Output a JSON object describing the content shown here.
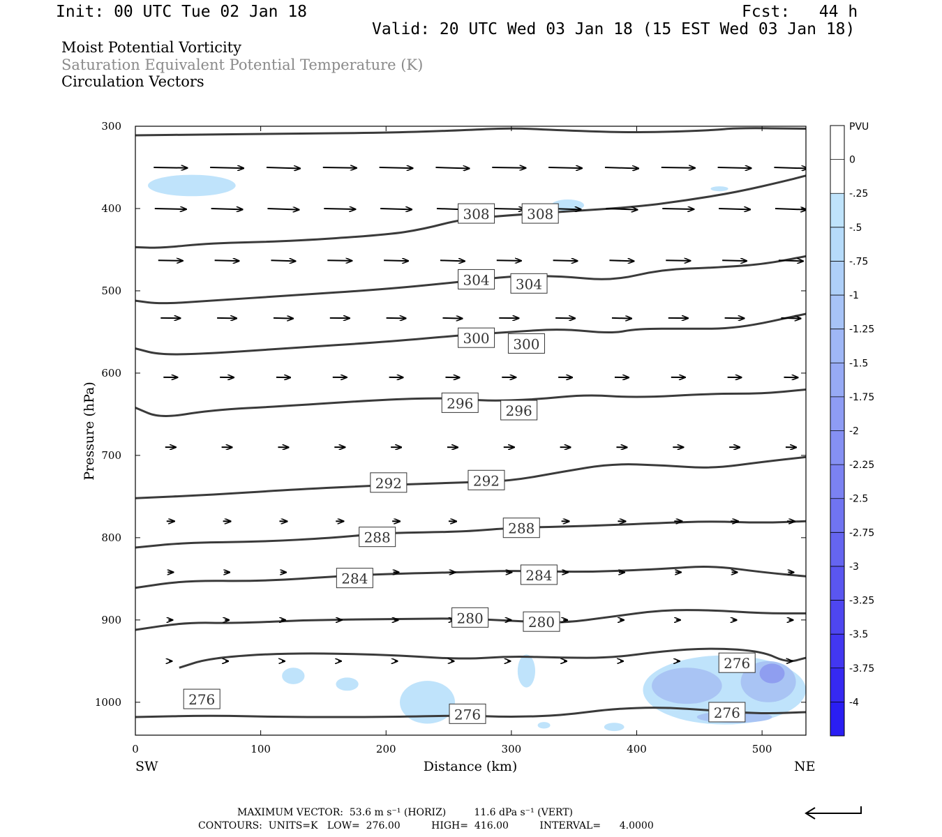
{
  "header": {
    "init": "Init: 00 UTC Tue 02 Jan 18",
    "fcst": "Fcst:   44 h",
    "valid": "Valid: 20 UTC Wed 03 Jan 18 (15 EST Wed 03 Jan 18)"
  },
  "titles": {
    "field1": "Moist Potential Vorticity",
    "field2": "Saturation Equivalent Potential Temperature (K)",
    "field3": "Circulation Vectors"
  },
  "colors": {
    "field2_text": "#8a8a8a",
    "contour": "#3a3a3a",
    "pv_light": "#bfe3fb",
    "pv_mid": "#a9c4f4",
    "pv_dark": "#8f9ef0"
  },
  "footer": {
    "max_vector": "MAXIMUM VECTOR:  53.6 m s⁻¹ (HORIZ)         11.6 dPa s⁻¹ (VERT)",
    "contours": "CONTOURS:  UNITS=K   LOW=  276.00          HIGH=  416.00          INTERVAL=      4.0000"
  },
  "chart_data": {
    "type": "cross-section",
    "xlabel": "Distance (km)",
    "ylabel": "Pressure (hPa)",
    "xlim": [
      0,
      535
    ],
    "ylim": [
      300,
      1040
    ],
    "x_ticks": [
      0,
      100,
      200,
      300,
      400,
      500
    ],
    "y_ticks": [
      300,
      400,
      500,
      600,
      700,
      800,
      900,
      1000
    ],
    "x_end_labels": [
      "SW",
      "NE"
    ],
    "colorbar": {
      "title": "PVU",
      "labels": [
        "0",
        "-.25",
        "-.5",
        "-.75",
        "-1",
        "-1.25",
        "-1.5",
        "-1.75",
        "-2",
        "-2.25",
        "-2.5",
        "-2.75",
        "-3",
        "-3.25",
        "-3.5",
        "-3.75",
        "-4"
      ],
      "colors": [
        "#ffffff",
        "#ffffff",
        "#bfe3fb",
        "#b6dbfa",
        "#aecff8",
        "#a7c3f7",
        "#9fb7f6",
        "#97aaf5",
        "#8e9cf4",
        "#8590f3",
        "#7b82f2",
        "#7074f1",
        "#6565f0",
        "#5a56f0",
        "#4e46f0",
        "#4237f1",
        "#3629f2",
        "#2a1ef3"
      ]
    },
    "contours": [
      {
        "level": 276,
        "points": [
          [
            0,
            1018
          ],
          [
            60,
            1016
          ],
          [
            120,
            1018
          ],
          [
            200,
            1018
          ],
          [
            260,
            1016
          ],
          [
            300,
            1018
          ],
          [
            340,
            1016
          ],
          [
            380,
            1008
          ],
          [
            420,
            1006
          ],
          [
            460,
            1010
          ],
          [
            500,
            1014
          ],
          [
            535,
            1012
          ]
        ]
      },
      {
        "level": 276,
        "points": [
          [
            35,
            958
          ],
          [
            60,
            946
          ],
          [
            120,
            940
          ],
          [
            200,
            942
          ],
          [
            260,
            948
          ],
          [
            300,
            944
          ],
          [
            340,
            946
          ],
          [
            380,
            946
          ],
          [
            420,
            938
          ],
          [
            460,
            934
          ],
          [
            500,
            938
          ],
          [
            520,
            952
          ],
          [
            535,
            946
          ]
        ]
      },
      {
        "level": 280,
        "points": [
          [
            0,
            912
          ],
          [
            40,
            903
          ],
          [
            80,
            904
          ],
          [
            140,
            900
          ],
          [
            200,
            899
          ],
          [
            260,
            898
          ],
          [
            300,
            901
          ],
          [
            340,
            904
          ],
          [
            380,
            896
          ],
          [
            420,
            888
          ],
          [
            460,
            888
          ],
          [
            500,
            892
          ],
          [
            535,
            892
          ]
        ]
      },
      {
        "level": 284,
        "points": [
          [
            0,
            861
          ],
          [
            40,
            852
          ],
          [
            100,
            853
          ],
          [
            160,
            847
          ],
          [
            200,
            844
          ],
          [
            260,
            842
          ],
          [
            300,
            840
          ],
          [
            360,
            842
          ],
          [
            420,
            838
          ],
          [
            460,
            834
          ],
          [
            500,
            842
          ],
          [
            535,
            847
          ]
        ]
      },
      {
        "level": 288,
        "points": [
          [
            0,
            812
          ],
          [
            40,
            806
          ],
          [
            100,
            805
          ],
          [
            160,
            800
          ],
          [
            200,
            794
          ],
          [
            260,
            793
          ],
          [
            300,
            788
          ],
          [
            360,
            786
          ],
          [
            420,
            782
          ],
          [
            460,
            780
          ],
          [
            500,
            782
          ],
          [
            535,
            780
          ]
        ]
      },
      {
        "level": 292,
        "points": [
          [
            0,
            752
          ],
          [
            60,
            748
          ],
          [
            120,
            742
          ],
          [
            200,
            736
          ],
          [
            260,
            733
          ],
          [
            300,
            731
          ],
          [
            340,
            720
          ],
          [
            380,
            710
          ],
          [
            420,
            712
          ],
          [
            460,
            716
          ],
          [
            500,
            708
          ],
          [
            535,
            702
          ]
        ]
      },
      {
        "level": 296,
        "points": [
          [
            0,
            642
          ],
          [
            20,
            655
          ],
          [
            60,
            645
          ],
          [
            120,
            640
          ],
          [
            200,
            632
          ],
          [
            250,
            630
          ],
          [
            280,
            634
          ],
          [
            320,
            632
          ],
          [
            360,
            626
          ],
          [
            400,
            630
          ],
          [
            460,
            625
          ],
          [
            500,
            625
          ],
          [
            535,
            620
          ]
        ]
      },
      {
        "level": 300,
        "points": [
          [
            0,
            570
          ],
          [
            20,
            578
          ],
          [
            60,
            576
          ],
          [
            120,
            570
          ],
          [
            200,
            562
          ],
          [
            260,
            554
          ],
          [
            300,
            550
          ],
          [
            340,
            546
          ],
          [
            380,
            552
          ],
          [
            400,
            546
          ],
          [
            440,
            546
          ],
          [
            480,
            546
          ],
          [
            535,
            528
          ]
        ]
      },
      {
        "level": 304,
        "points": [
          [
            0,
            512
          ],
          [
            20,
            516
          ],
          [
            60,
            512
          ],
          [
            120,
            506
          ],
          [
            200,
            498
          ],
          [
            260,
            489
          ],
          [
            300,
            482
          ],
          [
            340,
            482
          ],
          [
            380,
            488
          ],
          [
            420,
            474
          ],
          [
            460,
            472
          ],
          [
            500,
            468
          ],
          [
            535,
            458
          ]
        ]
      },
      {
        "level": 308,
        "points": [
          [
            0,
            447
          ],
          [
            20,
            448
          ],
          [
            60,
            442
          ],
          [
            120,
            440
          ],
          [
            200,
            432
          ],
          [
            230,
            425
          ],
          [
            260,
            413
          ],
          [
            300,
            408
          ],
          [
            340,
            404
          ],
          [
            400,
            398
          ],
          [
            440,
            390
          ],
          [
            480,
            380
          ],
          [
            520,
            366
          ],
          [
            535,
            360
          ]
        ]
      },
      {
        "level": null,
        "points": [
          [
            0,
            311
          ],
          [
            60,
            310
          ],
          [
            120,
            309
          ],
          [
            200,
            308
          ],
          [
            260,
            305
          ],
          [
            300,
            302
          ],
          [
            340,
            305
          ],
          [
            400,
            308
          ],
          [
            460,
            305
          ],
          [
            480,
            302
          ],
          [
            535,
            303
          ]
        ]
      }
    ],
    "contour_labels": [
      {
        "text": "308",
        "x": 272,
        "p": 406
      },
      {
        "text": "308",
        "x": 323,
        "p": 406
      },
      {
        "text": "304",
        "x": 272,
        "p": 486
      },
      {
        "text": "304",
        "x": 314,
        "p": 491
      },
      {
        "text": "300",
        "x": 272,
        "p": 557
      },
      {
        "text": "300",
        "x": 312,
        "p": 564
      },
      {
        "text": "296",
        "x": 259,
        "p": 636
      },
      {
        "text": "296",
        "x": 306,
        "p": 645
      },
      {
        "text": "292",
        "x": 202,
        "p": 733
      },
      {
        "text": "292",
        "x": 280,
        "p": 730
      },
      {
        "text": "288",
        "x": 193,
        "p": 799
      },
      {
        "text": "288",
        "x": 308,
        "p": 788
      },
      {
        "text": "284",
        "x": 175,
        "p": 849
      },
      {
        "text": "284",
        "x": 322,
        "p": 845
      },
      {
        "text": "280",
        "x": 267,
        "p": 897
      },
      {
        "text": "280",
        "x": 324,
        "p": 902
      },
      {
        "text": "276",
        "x": 53,
        "p": 996
      },
      {
        "text": "276",
        "x": 265,
        "p": 1014
      },
      {
        "text": "276",
        "x": 480,
        "p": 952
      },
      {
        "text": "276",
        "x": 472,
        "p": 1012
      }
    ],
    "pv_areas": [
      {
        "shade": "light",
        "x": 45,
        "p": 372,
        "rx": 35,
        "rp": 13
      },
      {
        "shade": "light",
        "x": 345,
        "p": 396,
        "rx": 13,
        "rp": 7
      },
      {
        "shade": "light",
        "x": 466,
        "p": 376,
        "rx": 7,
        "rp": 3
      },
      {
        "shade": "light",
        "x": 126,
        "p": 968,
        "rx": 9,
        "rp": 10
      },
      {
        "shade": "light",
        "x": 169,
        "p": 978,
        "rx": 9,
        "rp": 8
      },
      {
        "shade": "light",
        "x": 233,
        "p": 1000,
        "rx": 22,
        "rp": 26
      },
      {
        "shade": "light",
        "x": 312,
        "p": 962,
        "rx": 7,
        "rp": 20
      },
      {
        "shade": "light",
        "x": 326,
        "p": 1028,
        "rx": 5,
        "rp": 4
      },
      {
        "shade": "light",
        "x": 382,
        "p": 1030,
        "rx": 8,
        "rp": 5
      },
      {
        "shade": "light",
        "x": 470,
        "p": 985,
        "rx": 65,
        "rp": 42
      },
      {
        "shade": "mid",
        "x": 440,
        "p": 980,
        "rx": 28,
        "rp": 22
      },
      {
        "shade": "mid",
        "x": 505,
        "p": 975,
        "rx": 22,
        "rp": 25
      },
      {
        "shade": "mid",
        "x": 478,
        "p": 1018,
        "rx": 30,
        "rp": 7
      },
      {
        "shade": "dark",
        "x": 508,
        "p": 965,
        "rx": 10,
        "rp": 12
      }
    ],
    "vectors": [
      {
        "p": 350,
        "dx": 48,
        "dp": 0.4
      },
      {
        "p": 400,
        "dx": 45,
        "dp": 0.5
      },
      {
        "p": 463,
        "dx": 35,
        "dp": 0.4
      },
      {
        "p": 533,
        "dx": 28,
        "dp": 0.3
      },
      {
        "p": 605,
        "dx": 20,
        "dp": 0.25
      },
      {
        "p": 690,
        "dx": 15,
        "dp": 0.2
      },
      {
        "p": 780,
        "dx": 11,
        "dp": 0.2
      },
      {
        "p": 842,
        "dx": 8,
        "dp": 0.2
      },
      {
        "p": 900,
        "dx": 6,
        "dp": 0.2
      },
      {
        "p": 950,
        "dx": 4,
        "dp": 0.2
      }
    ],
    "vector_x": [
      28,
      73,
      118,
      163,
      208,
      253,
      298,
      343,
      388,
      433,
      478,
      523
    ]
  }
}
